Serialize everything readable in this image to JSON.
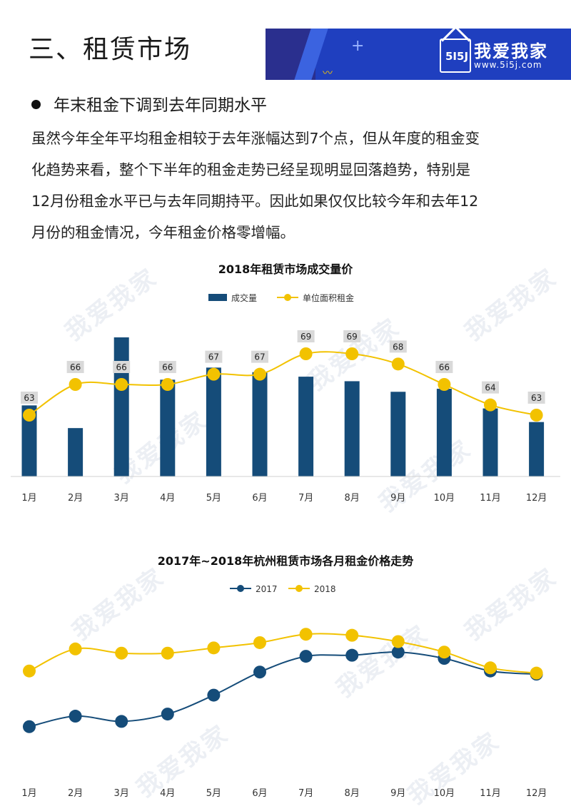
{
  "header": {
    "section_title": "三、租赁市场",
    "logo": {
      "name": "我爱我家",
      "mark": "5I5J",
      "url": "www.5i5j.com"
    }
  },
  "bullet": {
    "heading": "年末租金下调到去年同期水平"
  },
  "body": {
    "lines": [
      "虽然今年全年平均租金相较于去年涨幅达到7个点，但从年度的租金变",
      "化趋势来看，整个下半年的租金走势已经呈现明显回落趋势，特别是",
      "12月份租金水平已与去年同期持平。因此如果仅仅比较今年和去年12",
      "月份的租金情况，今年租金价格零增幅。"
    ]
  },
  "watermark_text": "我爱我家",
  "colors": {
    "bar": "#154c79",
    "line2018": "#f2c200",
    "line2017": "#154c79",
    "label_bg": "#d9d9d9",
    "banner": "#1f3fbf"
  },
  "chart_data": [
    {
      "type": "bar",
      "title": "2018年租赁市场成交量价",
      "categories": [
        "1月",
        "2月",
        "3月",
        "4月",
        "5月",
        "6月",
        "7月",
        "8月",
        "9月",
        "10月",
        "11月",
        "12月"
      ],
      "legend_position": "top",
      "series": [
        {
          "name": "成交量",
          "type": "bar",
          "values": [
            0.47,
            0.32,
            0.92,
            0.64,
            0.72,
            0.69,
            0.66,
            0.63,
            0.56,
            0.58,
            0.45,
            0.36
          ]
        },
        {
          "name": "单位面积租金",
          "type": "line",
          "values": [
            63,
            66,
            66,
            66,
            67,
            67,
            69,
            69,
            68,
            66,
            64,
            63
          ],
          "data_labels": [
            "63",
            "66",
            "66",
            "66",
            "67",
            "67",
            "69",
            "69",
            "68",
            "66",
            "64",
            "63"
          ]
        }
      ],
      "bar_value_scale": "relative (no axis printed)",
      "line_ylim": [
        57,
        72
      ]
    },
    {
      "type": "line",
      "title": "2017年~2018年杭州租赁市场各月租金价格走势",
      "categories": [
        "1月",
        "2月",
        "3月",
        "4月",
        "5月",
        "6月",
        "7月",
        "8月",
        "9月",
        "10月",
        "11月",
        "12月"
      ],
      "legend_position": "top",
      "series": [
        {
          "name": "2017",
          "values": [
            56.5,
            57.5,
            57.0,
            57.7,
            59.5,
            61.7,
            63.2,
            63.3,
            63.6,
            63.0,
            61.8,
            61.5
          ]
        },
        {
          "name": "2018",
          "values": [
            61.8,
            63.9,
            63.5,
            63.5,
            64.0,
            64.5,
            65.3,
            65.2,
            64.6,
            63.6,
            62.1,
            61.6
          ]
        }
      ],
      "ylim": [
        52,
        70
      ],
      "grid": false
    }
  ]
}
